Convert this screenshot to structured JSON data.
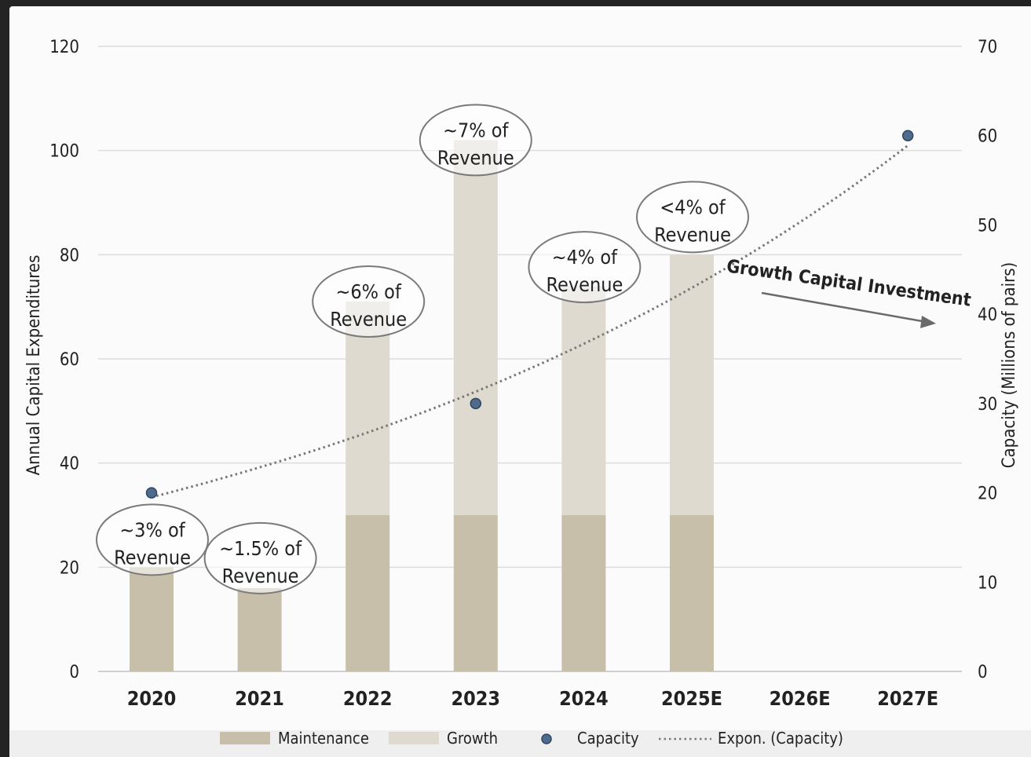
{
  "chart_data": {
    "type": "bar",
    "stacked": true,
    "categories": [
      "2020",
      "2021",
      "2022",
      "2023",
      "2024",
      "2025E",
      "2026E",
      "2027E"
    ],
    "series": [
      {
        "name": "Maintenance",
        "kind": "bar",
        "axis": "left",
        "color": "#c7bfaa",
        "values": [
          20,
          16,
          30,
          30,
          30,
          30,
          null,
          null
        ]
      },
      {
        "name": "Growth",
        "kind": "bar",
        "axis": "left",
        "color": "#dedad0",
        "values": [
          0,
          0,
          41,
          72,
          44,
          50,
          null,
          null
        ]
      },
      {
        "name": "Capacity",
        "kind": "scatter",
        "axis": "right",
        "color": "#4e6a8c",
        "values": [
          20,
          null,
          null,
          30,
          null,
          null,
          null,
          60
        ]
      },
      {
        "name": "Expon. (Capacity)",
        "kind": "trendline",
        "axis": "right",
        "color": "#777777"
      }
    ],
    "ylabel": "Annual Capital Expenditures",
    "ylabel_right": "Capacity (Millions of pairs)",
    "ylim": [
      0,
      120
    ],
    "yticks": [
      "0",
      "20",
      "40",
      "60",
      "80",
      "100",
      "120"
    ],
    "ylim_right": [
      0,
      70
    ],
    "yticks_right": [
      "0",
      "10",
      "20",
      "30",
      "40",
      "50",
      "60",
      "70"
    ],
    "grid": true,
    "legend_position": "bottom",
    "annotations": [
      {
        "category": "2020",
        "line1": "~3% of",
        "line2": "Revenue"
      },
      {
        "category": "2021",
        "line1": "~1.5% of",
        "line2": "Revenue"
      },
      {
        "category": "2022",
        "line1": "~6% of",
        "line2": "Revenue"
      },
      {
        "category": "2023",
        "line1": "~7% of",
        "line2": "Revenue"
      },
      {
        "category": "2024",
        "line1": "~4% of",
        "line2": "Revenue"
      },
      {
        "category": "2025E",
        "line1": "<4% of",
        "line2": "Revenue"
      }
    ],
    "arrow_annotation": "Growth Capital Investment"
  }
}
